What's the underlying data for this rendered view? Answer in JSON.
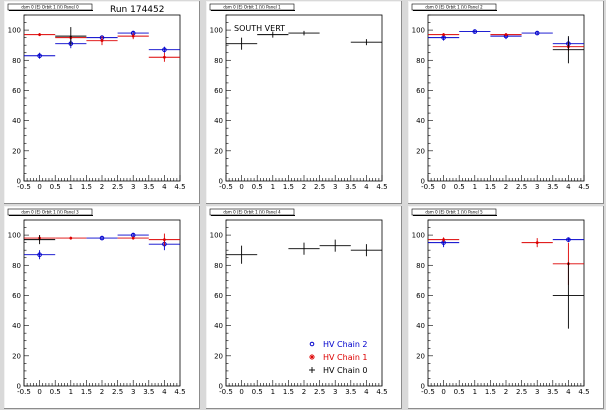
{
  "run_label": "Run 174452",
  "legend": {
    "entries": [
      {
        "label": "HV Chain 2",
        "color": "#0000cc",
        "marker": "circle"
      },
      {
        "label": "HV Chain 1",
        "color": "#dd0000",
        "marker": "star"
      },
      {
        "label": "HV Chain 0",
        "color": "#000000",
        "marker": "cross"
      }
    ]
  },
  "colors": {
    "chain2": "#0000cc",
    "chain1": "#dd0000",
    "chain0": "#000000",
    "background": "#d9d9d9"
  },
  "chart_data": [
    {
      "type": "scatter",
      "title": "dsm 0 (E) Orbit 1 (V) Panel 0",
      "x_ticks": [
        "-0.5",
        "0",
        "0.5",
        "1",
        "1.5",
        "2",
        "2.5",
        "3",
        "3.5",
        "4",
        "4.5"
      ],
      "y_ticks": [
        "0",
        "20",
        "40",
        "60",
        "80",
        "100"
      ],
      "xlim": [
        -0.5,
        4.5
      ],
      "ylim": [
        0,
        110
      ],
      "series": [
        {
          "name": "HV Chain 2",
          "color": "#0000cc",
          "points": [
            {
              "x": 0,
              "y": 83,
              "xerr": 0.5,
              "yerr": 2
            },
            {
              "x": 1,
              "y": 91,
              "xerr": 0.5,
              "yerr": 3
            },
            {
              "x": 2,
              "y": 95,
              "xerr": 0.5,
              "yerr": 1.5
            },
            {
              "x": 3,
              "y": 98,
              "xerr": 0.5,
              "yerr": 1.5
            },
            {
              "x": 4,
              "y": 87,
              "xerr": 0.5,
              "yerr": 2
            }
          ]
        },
        {
          "name": "HV Chain 1",
          "color": "#dd0000",
          "points": [
            {
              "x": 0,
              "y": 97,
              "xerr": 0.5,
              "yerr": 1
            },
            {
              "x": 1,
              "y": 95,
              "xerr": 0.5,
              "yerr": 1
            },
            {
              "x": 2,
              "y": 93,
              "xerr": 0.5,
              "yerr": 3
            },
            {
              "x": 3,
              "y": 96,
              "xerr": 0.5,
              "yerr": 2
            },
            {
              "x": 4,
              "y": 82,
              "xerr": 0.5,
              "yerr": 3
            }
          ]
        },
        {
          "name": "HV Chain 0",
          "color": "#000000",
          "points": [
            {
              "x": 1,
              "y": 96,
              "xerr": 0.5,
              "yerr": 6
            }
          ]
        }
      ]
    },
    {
      "type": "scatter",
      "title": "dsm 0 (E) Orbit 1 (V) Panel 1",
      "annotation": "SOUTH VERT",
      "x_ticks": [
        "-0.5",
        "0",
        "0.5",
        "1",
        "1.5",
        "2",
        "2.5",
        "3",
        "3.5",
        "4",
        "4.5"
      ],
      "y_ticks": [
        "0",
        "20",
        "40",
        "60",
        "80",
        "100"
      ],
      "xlim": [
        -0.5,
        4.5
      ],
      "ylim": [
        0,
        110
      ],
      "series": [
        {
          "name": "HV Chain 0",
          "color": "#000000",
          "points": [
            {
              "x": 0,
              "y": 91,
              "xerr": 0.5,
              "yerr": 4
            },
            {
              "x": 1,
              "y": 97,
              "xerr": 0.5,
              "yerr": 2
            },
            {
              "x": 2,
              "y": 98,
              "xerr": 0.5,
              "yerr": 1.5
            },
            {
              "x": 4,
              "y": 92,
              "xerr": 0.5,
              "yerr": 2
            }
          ]
        }
      ]
    },
    {
      "type": "scatter",
      "title": "dsm 0 (E) Orbit 1 (V) Panel 2",
      "x_ticks": [
        "-0.5",
        "0",
        "0.5",
        "1",
        "1.5",
        "2",
        "2.5",
        "3",
        "3.5",
        "4",
        "4.5"
      ],
      "y_ticks": [
        "0",
        "20",
        "40",
        "60",
        "80",
        "100"
      ],
      "xlim": [
        -0.5,
        4.5
      ],
      "ylim": [
        0,
        110
      ],
      "series": [
        {
          "name": "HV Chain 2",
          "color": "#0000cc",
          "points": [
            {
              "x": 0,
              "y": 95,
              "xerr": 0.5,
              "yerr": 2
            },
            {
              "x": 1,
              "y": 99,
              "xerr": 0.5,
              "yerr": 1
            },
            {
              "x": 2,
              "y": 96,
              "xerr": 0.5,
              "yerr": 2
            },
            {
              "x": 3,
              "y": 98,
              "xerr": 0.5,
              "yerr": 1
            },
            {
              "x": 4,
              "y": 91,
              "xerr": 0.5,
              "yerr": 4
            }
          ]
        },
        {
          "name": "HV Chain 1",
          "color": "#dd0000",
          "points": [
            {
              "x": 0,
              "y": 97,
              "xerr": 0.5,
              "yerr": 1
            },
            {
              "x": 2,
              "y": 97,
              "xerr": 0.5,
              "yerr": 1
            },
            {
              "x": 4,
              "y": 89,
              "xerr": 0.5,
              "yerr": 3
            }
          ]
        },
        {
          "name": "HV Chain 0",
          "color": "#000000",
          "points": [
            {
              "x": 4,
              "y": 87,
              "xerr": 0.5,
              "yerr": 9
            }
          ]
        }
      ]
    },
    {
      "type": "scatter",
      "title": "dsm 0 (E) Orbit 1 (V) Panel 3",
      "x_ticks": [
        "-0.5",
        "0",
        "0.5",
        "1",
        "1.5",
        "2",
        "2.5",
        "3",
        "3.5",
        "4",
        "4.5"
      ],
      "y_ticks": [
        "0",
        "20",
        "40",
        "60",
        "80",
        "100"
      ],
      "xlim": [
        -0.5,
        4.5
      ],
      "ylim": [
        0,
        110
      ],
      "series": [
        {
          "name": "HV Chain 2",
          "color": "#0000cc",
          "points": [
            {
              "x": 0,
              "y": 87,
              "xerr": 0.5,
              "yerr": 3
            },
            {
              "x": 2,
              "y": 98,
              "xerr": 0.5,
              "yerr": 1
            },
            {
              "x": 3,
              "y": 100,
              "xerr": 0.5,
              "yerr": 1.5
            },
            {
              "x": 4,
              "y": 94,
              "xerr": 0.5,
              "yerr": 4
            }
          ]
        },
        {
          "name": "HV Chain 1",
          "color": "#dd0000",
          "points": [
            {
              "x": 0,
              "y": 98,
              "xerr": 0.5,
              "yerr": 2
            },
            {
              "x": 1,
              "y": 98,
              "xerr": 0.5,
              "yerr": 1
            },
            {
              "x": 3,
              "y": 98,
              "xerr": 0.5,
              "yerr": 1
            },
            {
              "x": 4,
              "y": 97,
              "xerr": 0.5,
              "yerr": 4
            }
          ]
        },
        {
          "name": "HV Chain 0",
          "color": "#000000",
          "points": [
            {
              "x": 0,
              "y": 97,
              "xerr": 0.5,
              "yerr": 3
            }
          ]
        }
      ]
    },
    {
      "type": "scatter",
      "title": "dsm 0 (E) Orbit 1 (V) Panel 4",
      "x_ticks": [
        "-0.5",
        "0",
        "0.5",
        "1",
        "1.5",
        "2",
        "2.5",
        "3",
        "3.5",
        "4",
        "4.5"
      ],
      "y_ticks": [
        "0",
        "20",
        "40",
        "60",
        "80",
        "100"
      ],
      "xlim": [
        -0.5,
        4.5
      ],
      "ylim": [
        0,
        110
      ],
      "series": [
        {
          "name": "HV Chain 0",
          "color": "#000000",
          "points": [
            {
              "x": 0,
              "y": 87,
              "xerr": 0.5,
              "yerr": 6
            },
            {
              "x": 2,
              "y": 91,
              "xerr": 0.5,
              "yerr": 4
            },
            {
              "x": 3,
              "y": 93,
              "xerr": 0.5,
              "yerr": 4
            },
            {
              "x": 4,
              "y": 90,
              "xerr": 0.5,
              "yerr": 4
            }
          ]
        }
      ]
    },
    {
      "type": "scatter",
      "title": "dsm 0 (E) Orbit 1 (V) Panel 5",
      "x_ticks": [
        "-0.5",
        "0",
        "0.5",
        "1",
        "1.5",
        "2",
        "2.5",
        "3",
        "3.5",
        "4",
        "4.5"
      ],
      "y_ticks": [
        "0",
        "20",
        "40",
        "60",
        "80",
        "100"
      ],
      "xlim": [
        -0.5,
        4.5
      ],
      "ylim": [
        0,
        110
      ],
      "series": [
        {
          "name": "HV Chain 2",
          "color": "#0000cc",
          "points": [
            {
              "x": 0,
              "y": 95,
              "xerr": 0.5,
              "yerr": 3
            },
            {
              "x": 4,
              "y": 97,
              "xerr": 0.5,
              "yerr": 1.5
            }
          ]
        },
        {
          "name": "HV Chain 1",
          "color": "#dd0000",
          "points": [
            {
              "x": 0,
              "y": 97,
              "xerr": 0.5,
              "yerr": 1.5
            },
            {
              "x": 3,
              "y": 95,
              "xerr": 0.5,
              "yerr": 3
            },
            {
              "x": 4,
              "y": 81,
              "xerr": 0.5,
              "yerr": 14
            }
          ]
        },
        {
          "name": "HV Chain 0",
          "color": "#000000",
          "points": [
            {
              "x": 4,
              "y": 60,
              "xerr": 0.5,
              "yerr": 22
            }
          ]
        }
      ]
    }
  ]
}
